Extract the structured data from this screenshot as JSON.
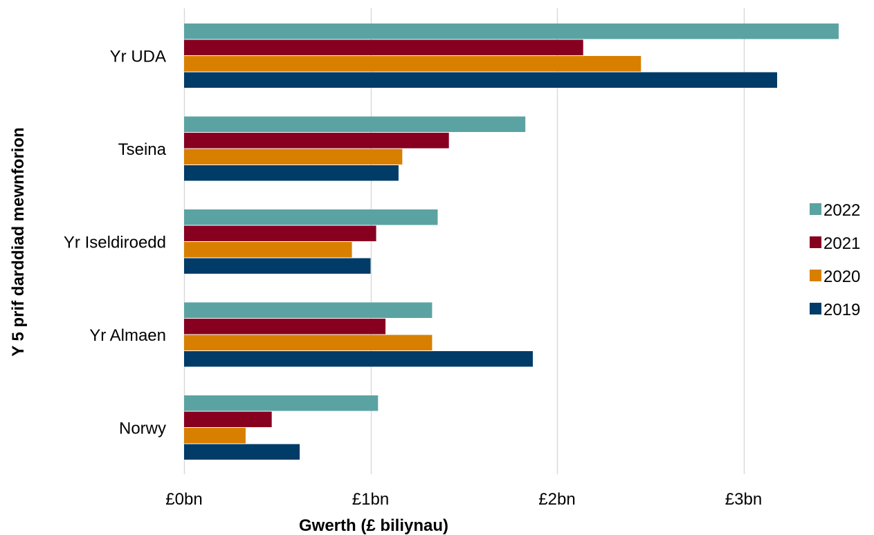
{
  "chart_data": {
    "type": "bar",
    "orientation": "horizontal",
    "categories": [
      "Yr UDA",
      "Tseina",
      "Yr Iseldiroedd",
      "Yr Almaen",
      "Norwy"
    ],
    "series": [
      {
        "name": "2022",
        "color": "#5BA3A3",
        "values": [
          3.51,
          1.83,
          1.36,
          1.33,
          1.04
        ]
      },
      {
        "name": "2021",
        "color": "#870020",
        "values": [
          2.14,
          1.42,
          1.03,
          1.08,
          0.47
        ]
      },
      {
        "name": "2020",
        "color": "#D87F00",
        "values": [
          2.45,
          1.17,
          0.9,
          1.33,
          0.33
        ]
      },
      {
        "name": "2019",
        "color": "#013B67",
        "values": [
          3.18,
          1.15,
          1.0,
          1.87,
          0.62
        ]
      }
    ],
    "xticks": [
      0,
      1,
      2,
      3
    ],
    "xtick_labels": [
      "£0bn",
      "£1bn",
      "£2bn",
      "£3bn"
    ],
    "xlim": [
      0,
      3.6
    ],
    "xlabel": "Gwerth (£ biliynau)",
    "ylabel": "Y 5 prif darddiad mewnforion",
    "grid": "vertical",
    "legend_position": "right"
  }
}
